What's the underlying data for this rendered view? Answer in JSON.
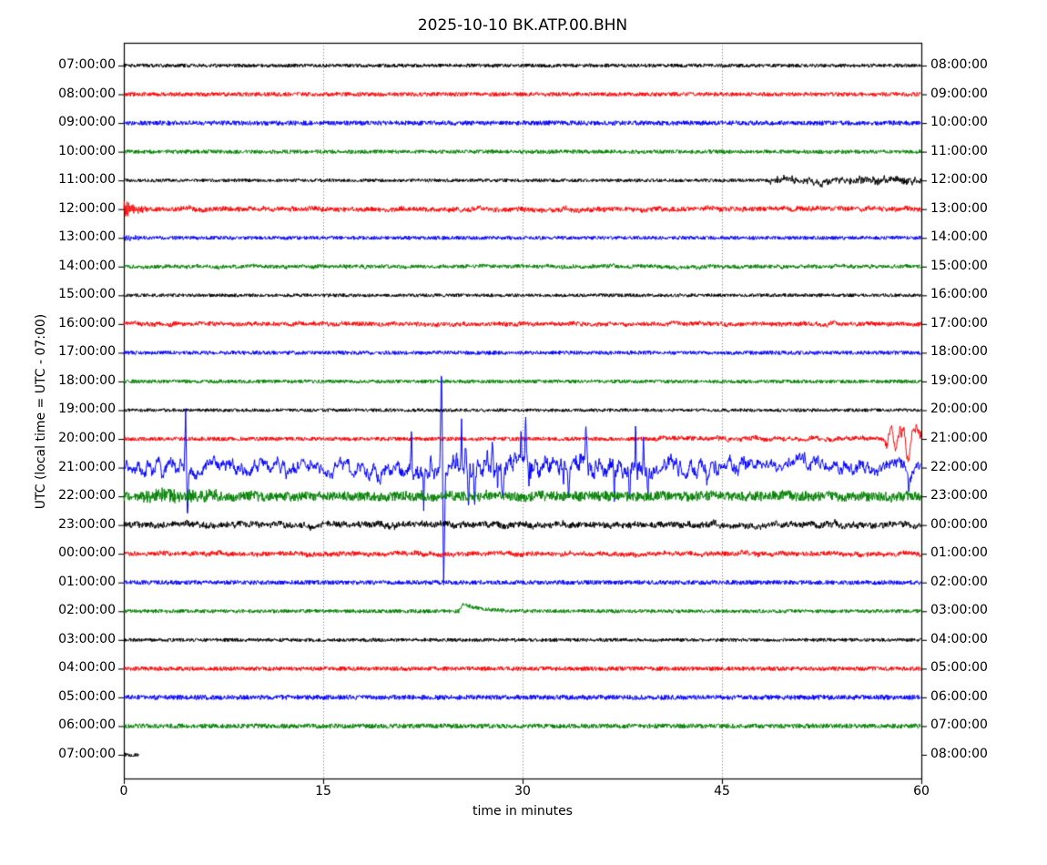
{
  "chart_data": {
    "type": "line",
    "subtype": "seismic-helicorder-dayplot",
    "title": "2025-10-10 BK.ATP.00.BHN",
    "xlabel": "time in minutes",
    "ylabel": "UTC (local time = UTC - 07:00)",
    "xlim": [
      0,
      60
    ],
    "x_ticks": [
      0,
      15,
      30,
      45,
      60
    ],
    "x_tick_labels": [
      "0",
      "15",
      "30",
      "45",
      "60"
    ],
    "grid": {
      "vertical_dotted_at": [
        15,
        30,
        45
      ]
    },
    "minutes_per_row": 60,
    "colors_cycle": [
      "#000000",
      "#ff0000",
      "#0000ff",
      "#008000"
    ],
    "legend_position": "none",
    "rows": [
      {
        "label_left": "07:00:00",
        "label_right": "08:00:00",
        "color": "#000000",
        "amp": 2.1,
        "end_min": 60,
        "events": []
      },
      {
        "label_left": "08:00:00",
        "label_right": "09:00:00",
        "color": "#ff0000",
        "amp": 2.3,
        "end_min": 60,
        "events": []
      },
      {
        "label_left": "09:00:00",
        "label_right": "10:00:00",
        "color": "#0000ff",
        "amp": 2.6,
        "end_min": 60,
        "events": []
      },
      {
        "label_left": "10:00:00",
        "label_right": "11:00:00",
        "color": "#008000",
        "amp": 2.2,
        "end_min": 60,
        "events": []
      },
      {
        "label_left": "11:00:00",
        "label_right": "12:00:00",
        "color": "#000000",
        "amp": 1.9,
        "end_min": 60,
        "events": [
          {
            "type": "noise",
            "t0": 48.5,
            "t1": 60,
            "amp": 2.5
          },
          {
            "type": "lfnoise",
            "t0": 48.5,
            "t1": 60,
            "amp": 2.5
          }
        ]
      },
      {
        "label_left": "12:00:00",
        "label_right": "13:00:00",
        "color": "#ff0000",
        "amp": 2.6,
        "end_min": 60,
        "events": [
          {
            "type": "ring",
            "t0": 0,
            "t1": 4.5,
            "amp": 8,
            "freq": 9,
            "decay": 1.1
          },
          {
            "type": "lfnoise",
            "t0": 4,
            "t1": 60,
            "amp": 1.2
          }
        ]
      },
      {
        "label_left": "13:00:00",
        "label_right": "14:00:00",
        "color": "#0000ff",
        "amp": 2.1,
        "end_min": 60,
        "events": [
          {
            "type": "ring",
            "t0": 0,
            "t1": 2,
            "amp": 3.5,
            "freq": 6,
            "decay": 0.8
          }
        ]
      },
      {
        "label_left": "14:00:00",
        "label_right": "15:00:00",
        "color": "#008000",
        "amp": 2.1,
        "end_min": 60,
        "events": [
          {
            "type": "lfnoise",
            "t0": 0,
            "t1": 60,
            "amp": 0.9
          }
        ]
      },
      {
        "label_left": "15:00:00",
        "label_right": "16:00:00",
        "color": "#000000",
        "amp": 1.9,
        "end_min": 60,
        "events": []
      },
      {
        "label_left": "16:00:00",
        "label_right": "17:00:00",
        "color": "#ff0000",
        "amp": 2.3,
        "end_min": 60,
        "events": [
          {
            "type": "lfnoise",
            "t0": 0,
            "t1": 60,
            "amp": 1.0
          }
        ]
      },
      {
        "label_left": "17:00:00",
        "label_right": "18:00:00",
        "color": "#0000ff",
        "amp": 2.2,
        "end_min": 60,
        "events": []
      },
      {
        "label_left": "18:00:00",
        "label_right": "19:00:00",
        "color": "#008000",
        "amp": 2.1,
        "end_min": 60,
        "events": []
      },
      {
        "label_left": "19:00:00",
        "label_right": "20:00:00",
        "color": "#000000",
        "amp": 1.9,
        "end_min": 60,
        "events": []
      },
      {
        "label_left": "20:00:00",
        "label_right": "21:00:00",
        "color": "#ff0000",
        "amp": 2.3,
        "end_min": 60,
        "events": [
          {
            "type": "lfnoise",
            "t0": 40,
            "t1": 57.3,
            "amp": 1.6
          },
          {
            "type": "lfnoise",
            "t0": 57.3,
            "t1": 60,
            "amp": 11
          },
          {
            "type": "spike",
            "t": 57.75,
            "up": 13,
            "down": 3,
            "width": 0.25
          },
          {
            "type": "spike",
            "t": 58.6,
            "up": 3,
            "down": 24,
            "width": 0.35
          }
        ]
      },
      {
        "label_left": "21:00:00",
        "label_right": "22:00:00",
        "color": "#0000ff",
        "amp": 3.0,
        "end_min": 60,
        "events": [
          {
            "type": "lfnoise",
            "t0": 0,
            "t1": 60,
            "amp": 10
          },
          {
            "type": "spike",
            "t": 4.65,
            "up": 70,
            "down": 50,
            "width": 0.12
          },
          {
            "type": "noise",
            "t0": 21.5,
            "t1": 40,
            "amp": 4
          },
          {
            "type": "spikes",
            "t0": 21.5,
            "t1": 40,
            "amp": 42,
            "count": 60
          },
          {
            "type": "spike",
            "t": 23.9,
            "up": 118,
            "down": 122,
            "width": 0.14
          },
          {
            "type": "spikes",
            "t0": 41,
            "t1": 60,
            "amp": 20,
            "count": 14
          }
        ]
      },
      {
        "label_left": "22:00:00",
        "label_right": "23:00:00",
        "color": "#008000",
        "amp": 5.2,
        "end_min": 60,
        "events": [
          {
            "type": "noise",
            "t0": 1.5,
            "t1": 7,
            "amp": 4.5
          },
          {
            "type": "lfnoise",
            "t0": 0,
            "t1": 60,
            "amp": 1.5
          }
        ]
      },
      {
        "label_left": "23:00:00",
        "label_right": "00:00:00",
        "color": "#000000",
        "amp": 3.0,
        "end_min": 60,
        "events": [
          {
            "type": "lfnoise",
            "t0": 0,
            "t1": 60,
            "amp": 2.2
          }
        ]
      },
      {
        "label_left": "00:00:00",
        "label_right": "01:00:00",
        "color": "#ff0000",
        "amp": 2.5,
        "end_min": 60,
        "events": [
          {
            "type": "lfnoise",
            "t0": 0,
            "t1": 60,
            "amp": 1.2
          }
        ]
      },
      {
        "label_left": "01:00:00",
        "label_right": "02:00:00",
        "color": "#0000ff",
        "amp": 2.5,
        "end_min": 60,
        "events": []
      },
      {
        "label_left": "02:00:00",
        "label_right": "03:00:00",
        "color": "#008000",
        "amp": 2.1,
        "end_min": 60,
        "events": [
          {
            "type": "pulse",
            "t": 25.55,
            "amp": 8,
            "rise": 0.35,
            "decay": 1.3
          }
        ]
      },
      {
        "label_left": "03:00:00",
        "label_right": "04:00:00",
        "color": "#000000",
        "amp": 2.0,
        "end_min": 60,
        "events": []
      },
      {
        "label_left": "04:00:00",
        "label_right": "05:00:00",
        "color": "#ff0000",
        "amp": 2.4,
        "end_min": 60,
        "events": []
      },
      {
        "label_left": "05:00:00",
        "label_right": "06:00:00",
        "color": "#0000ff",
        "amp": 2.7,
        "end_min": 60,
        "events": []
      },
      {
        "label_left": "06:00:00",
        "label_right": "07:00:00",
        "color": "#008000",
        "amp": 2.7,
        "end_min": 60,
        "events": []
      },
      {
        "label_left": "07:00:00",
        "label_right": "08:00:00",
        "color": "#000000",
        "amp": 2.2,
        "end_min": 1.15,
        "events": []
      }
    ]
  }
}
